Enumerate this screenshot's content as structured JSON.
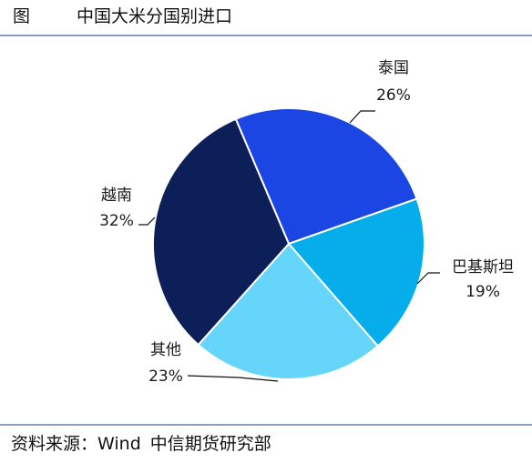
{
  "header": {
    "figure_label": "图",
    "title": "中国大米分国别进口"
  },
  "chart_data": {
    "type": "pie",
    "title": "中国大米分国别进口",
    "slices": [
      {
        "name": "泰国",
        "value": 26,
        "label": "26%",
        "color": "#1c46e4"
      },
      {
        "name": "巴基斯坦",
        "value": 19,
        "label": "19%",
        "color": "#05aeea"
      },
      {
        "name": "其他",
        "value": 23,
        "label": "23%",
        "color": "#66d5fa"
      },
      {
        "name": "越南",
        "value": 32,
        "label": "32%",
        "color": "#0d1f59"
      }
    ]
  },
  "footer": {
    "source_label": "资料来源：",
    "source_name": "Wind",
    "source_org": "中信期货研究部"
  }
}
